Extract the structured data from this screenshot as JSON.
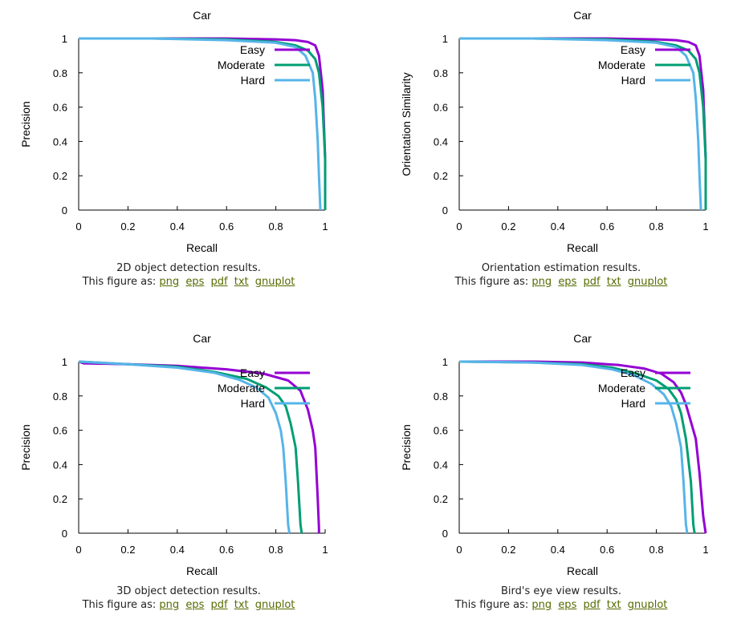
{
  "figures": [
    {
      "caption": "2D object detection results.",
      "figure_as_label": "This figure as:",
      "links": [
        "png",
        "eps",
        "pdf",
        "txt",
        "gnuplot"
      ]
    },
    {
      "caption": "Orientation estimation results.",
      "figure_as_label": "This figure as:",
      "links": [
        "png",
        "eps",
        "pdf",
        "txt",
        "gnuplot"
      ]
    },
    {
      "caption": "3D object detection results.",
      "figure_as_label": "This figure as:",
      "links": [
        "png",
        "eps",
        "pdf",
        "txt",
        "gnuplot"
      ]
    },
    {
      "caption": "Bird's eye view results.",
      "figure_as_label": "This figure as:",
      "links": [
        "png",
        "eps",
        "pdf",
        "txt",
        "gnuplot"
      ]
    }
  ],
  "chart_data": [
    {
      "type": "line",
      "title": "Car",
      "xlabel": "Recall",
      "ylabel": "Precision",
      "xlim": [
        0,
        1
      ],
      "ylim": [
        0,
        1
      ],
      "xticks": [
        "0",
        "0.2",
        "0.4",
        "0.6",
        "0.8",
        "1"
      ],
      "yticks": [
        "0",
        "0.2",
        "0.4",
        "0.6",
        "0.8",
        "1"
      ],
      "grid": false,
      "legend_position": "top-right",
      "series": [
        {
          "name": "Easy",
          "color": "#9400d3",
          "x": [
            0,
            0.3,
            0.6,
            0.8,
            0.88,
            0.93,
            0.96,
            0.975,
            0.99,
            1.0,
            1.0,
            1.0
          ],
          "y": [
            1,
            1,
            1,
            0.995,
            0.99,
            0.98,
            0.96,
            0.9,
            0.7,
            0.3,
            0.05,
            0
          ]
        },
        {
          "name": "Moderate",
          "color": "#009e73",
          "x": [
            0,
            0.3,
            0.6,
            0.8,
            0.88,
            0.93,
            0.96,
            0.975,
            0.99,
            1.0,
            1.0,
            1.0
          ],
          "y": [
            1,
            1,
            0.995,
            0.98,
            0.96,
            0.93,
            0.88,
            0.8,
            0.6,
            0.3,
            0.05,
            0
          ]
        },
        {
          "name": "Hard",
          "color": "#56b4e9",
          "x": [
            0,
            0.3,
            0.6,
            0.8,
            0.88,
            0.92,
            0.95,
            0.96,
            0.97,
            0.975,
            0.98,
            0.98
          ],
          "y": [
            1,
            1,
            0.99,
            0.975,
            0.95,
            0.9,
            0.8,
            0.65,
            0.4,
            0.2,
            0.02,
            0
          ]
        }
      ]
    },
    {
      "type": "line",
      "title": "Car",
      "xlabel": "Recall",
      "ylabel": "Orientation Similarity",
      "xlim": [
        0,
        1
      ],
      "ylim": [
        0,
        1
      ],
      "xticks": [
        "0",
        "0.2",
        "0.4",
        "0.6",
        "0.8",
        "1"
      ],
      "yticks": [
        "0",
        "0.2",
        "0.4",
        "0.6",
        "0.8",
        "1"
      ],
      "grid": false,
      "legend_position": "top-right",
      "series": [
        {
          "name": "Easy",
          "color": "#9400d3",
          "x": [
            0,
            0.3,
            0.6,
            0.8,
            0.88,
            0.93,
            0.96,
            0.975,
            0.99,
            1.0,
            1.0,
            1.0
          ],
          "y": [
            1,
            1,
            1,
            0.995,
            0.99,
            0.98,
            0.96,
            0.9,
            0.7,
            0.3,
            0.05,
            0
          ]
        },
        {
          "name": "Moderate",
          "color": "#009e73",
          "x": [
            0,
            0.3,
            0.6,
            0.8,
            0.88,
            0.93,
            0.96,
            0.975,
            0.99,
            1.0,
            1.0,
            1.0
          ],
          "y": [
            1,
            1,
            0.995,
            0.98,
            0.96,
            0.93,
            0.88,
            0.8,
            0.6,
            0.3,
            0.05,
            0
          ]
        },
        {
          "name": "Hard",
          "color": "#56b4e9",
          "x": [
            0,
            0.3,
            0.6,
            0.8,
            0.88,
            0.92,
            0.95,
            0.96,
            0.97,
            0.975,
            0.98,
            0.98
          ],
          "y": [
            1,
            1,
            0.99,
            0.975,
            0.95,
            0.9,
            0.8,
            0.65,
            0.4,
            0.2,
            0.02,
            0
          ]
        }
      ]
    },
    {
      "type": "line",
      "title": "Car",
      "xlabel": "Recall",
      "ylabel": "Precision",
      "xlim": [
        0,
        1
      ],
      "ylim": [
        0,
        1
      ],
      "xticks": [
        "0",
        "0.2",
        "0.4",
        "0.6",
        "0.8",
        "1"
      ],
      "yticks": [
        "0",
        "0.2",
        "0.4",
        "0.6",
        "0.8",
        "1"
      ],
      "grid": false,
      "legend_position": "top-right",
      "series": [
        {
          "name": "Easy",
          "color": "#9400d3",
          "x": [
            0,
            0.02,
            0.2,
            0.4,
            0.6,
            0.75,
            0.85,
            0.9,
            0.93,
            0.95,
            0.96,
            0.97,
            0.975,
            0.975
          ],
          "y": [
            1,
            0.99,
            0.985,
            0.975,
            0.955,
            0.93,
            0.89,
            0.83,
            0.72,
            0.6,
            0.5,
            0.2,
            0.03,
            0
          ]
        },
        {
          "name": "Moderate",
          "color": "#009e73",
          "x": [
            0,
            0.2,
            0.4,
            0.55,
            0.68,
            0.76,
            0.81,
            0.84,
            0.86,
            0.88,
            0.89,
            0.9,
            0.905
          ],
          "y": [
            1,
            0.985,
            0.97,
            0.94,
            0.9,
            0.85,
            0.8,
            0.74,
            0.64,
            0.5,
            0.3,
            0.05,
            0
          ]
        },
        {
          "name": "Hard",
          "color": "#56b4e9",
          "x": [
            0,
            0.2,
            0.4,
            0.55,
            0.65,
            0.72,
            0.77,
            0.8,
            0.82,
            0.83,
            0.84,
            0.85,
            0.855
          ],
          "y": [
            1,
            0.985,
            0.965,
            0.935,
            0.895,
            0.85,
            0.79,
            0.7,
            0.6,
            0.5,
            0.3,
            0.05,
            0
          ]
        }
      ]
    },
    {
      "type": "line",
      "title": "Car",
      "xlabel": "Recall",
      "ylabel": "Precision",
      "xlim": [
        0,
        1
      ],
      "ylim": [
        0,
        1
      ],
      "xticks": [
        "0",
        "0.2",
        "0.4",
        "0.6",
        "0.8",
        "1"
      ],
      "yticks": [
        "0",
        "0.2",
        "0.4",
        "0.6",
        "0.8",
        "1"
      ],
      "grid": false,
      "legend_position": "top-right",
      "series": [
        {
          "name": "Easy",
          "color": "#9400d3",
          "x": [
            0,
            0.3,
            0.5,
            0.65,
            0.75,
            0.82,
            0.87,
            0.9,
            0.92,
            0.94,
            0.96,
            0.975,
            0.99,
            1.0
          ],
          "y": [
            1,
            1,
            0.995,
            0.98,
            0.96,
            0.93,
            0.88,
            0.82,
            0.75,
            0.65,
            0.55,
            0.35,
            0.1,
            0
          ]
        },
        {
          "name": "Moderate",
          "color": "#009e73",
          "x": [
            0,
            0.3,
            0.5,
            0.62,
            0.72,
            0.8,
            0.85,
            0.88,
            0.9,
            0.92,
            0.94,
            0.95,
            0.955
          ],
          "y": [
            1,
            0.995,
            0.985,
            0.965,
            0.93,
            0.89,
            0.84,
            0.78,
            0.7,
            0.55,
            0.3,
            0.05,
            0
          ]
        },
        {
          "name": "Hard",
          "color": "#56b4e9",
          "x": [
            0,
            0.3,
            0.5,
            0.62,
            0.71,
            0.78,
            0.83,
            0.86,
            0.88,
            0.9,
            0.91,
            0.92,
            0.925
          ],
          "y": [
            1,
            0.995,
            0.98,
            0.955,
            0.92,
            0.87,
            0.81,
            0.74,
            0.64,
            0.5,
            0.3,
            0.05,
            0
          ]
        }
      ]
    }
  ]
}
